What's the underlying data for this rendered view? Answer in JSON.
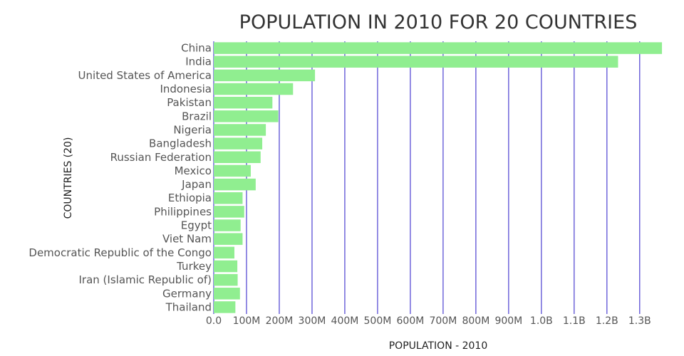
{
  "chart_data": {
    "type": "bar",
    "orientation": "horizontal",
    "title": "POPULATION IN 2010 FOR 20 COUNTRIES",
    "xlabel": "POPULATION - 2010",
    "ylabel": "COUNTRIES (20)",
    "xlim": [
      0,
      1370000000
    ],
    "x_ticks": [
      {
        "value": 0,
        "label": "0.0"
      },
      {
        "value": 100000000,
        "label": "100M"
      },
      {
        "value": 200000000,
        "label": "200M"
      },
      {
        "value": 300000000,
        "label": "300M"
      },
      {
        "value": 400000000,
        "label": "400M"
      },
      {
        "value": 500000000,
        "label": "500M"
      },
      {
        "value": 600000000,
        "label": "600M"
      },
      {
        "value": 700000000,
        "label": "700M"
      },
      {
        "value": 800000000,
        "label": "800M"
      },
      {
        "value": 900000000,
        "label": "900M"
      },
      {
        "value": 1000000000,
        "label": "1.0B"
      },
      {
        "value": 1100000000,
        "label": "1.1B"
      },
      {
        "value": 1200000000,
        "label": "1.2B"
      },
      {
        "value": 1300000000,
        "label": "1.3B"
      }
    ],
    "categories": [
      "China",
      "India",
      "United States of America",
      "Indonesia",
      "Pakistan",
      "Brazil",
      "Nigeria",
      "Bangladesh",
      "Russian Federation",
      "Mexico",
      "Japan",
      "Ethiopia",
      "Philippines",
      "Egypt",
      "Viet Nam",
      "Democratic Republic of the Congo",
      "Turkey",
      "Iran (Islamic Republic of)",
      "Germany",
      "Thailand"
    ],
    "values": [
      1368000000,
      1234000000,
      309000000,
      242000000,
      179000000,
      197000000,
      159000000,
      148000000,
      143000000,
      113000000,
      128000000,
      88000000,
      93000000,
      82000000,
      88000000,
      63000000,
      72000000,
      73000000,
      80000000,
      66000000
    ],
    "grid": true,
    "bar_color": "#90ee90",
    "grid_color": "#4b3fd1"
  }
}
